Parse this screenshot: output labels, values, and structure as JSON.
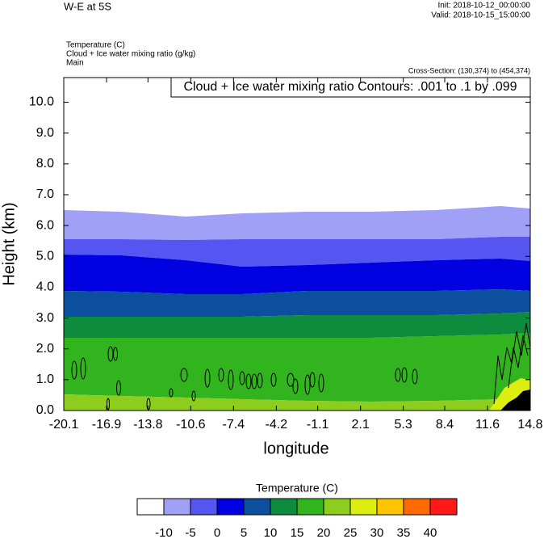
{
  "chart_data": {
    "type": "contour",
    "title": "W-E at 5S",
    "init_label": "Init: 2018-10-12_00:00:00",
    "valid_label": "Valid: 2018-10-15_15:00:00",
    "field_labels": [
      "Temperature   (C)",
      "Cloud + Ice water mixing ratio   (g/kg)",
      "Main"
    ],
    "cross_section": "Cross-Section: (130,374) to (454,374)",
    "contour_label": "Cloud + Ice water mixing ratio Contours: .001 to .1 by .099",
    "ylabel": "Height (km)",
    "xlabel": "longitude",
    "xlim": [
      -20.1,
      14.8
    ],
    "xticks": [
      -20.1,
      -16.9,
      -13.8,
      -10.6,
      -7.4,
      -4.2,
      -1.1,
      2.1,
      5.3,
      8.4,
      11.6,
      14.8
    ],
    "ylim": [
      0,
      10.8
    ],
    "yticks": [
      {
        "value": 0,
        "label": "0.0"
      },
      {
        "value": 1,
        "label": "1.0"
      },
      {
        "value": 2,
        "label": "2.0"
      },
      {
        "value": 3,
        "label": "3.0"
      },
      {
        "value": 4,
        "label": "4.0"
      },
      {
        "value": 5,
        "label": "5.0"
      },
      {
        "value": 6,
        "label": "6.0"
      },
      {
        "value": 7,
        "label": "7.0"
      },
      {
        "value": 8,
        "label": "8.0"
      },
      {
        "value": 9,
        "label": "9.0"
      },
      {
        "value": 10,
        "label": "10.0"
      }
    ],
    "colorbar": {
      "title": "Temperature  (C)",
      "levels": [
        -10,
        -5,
        0,
        5,
        10,
        15,
        20,
        25,
        30,
        35,
        40
      ],
      "colors": [
        "#ffffff",
        "#a0a0f7",
        "#5555f2",
        "#0000e0",
        "#0b4f9e",
        "#0e8c3e",
        "#32b41e",
        "#8ccd1e",
        "#dcee10",
        "#ffc400",
        "#ff6a00",
        "#ff1a1a"
      ]
    }
  }
}
